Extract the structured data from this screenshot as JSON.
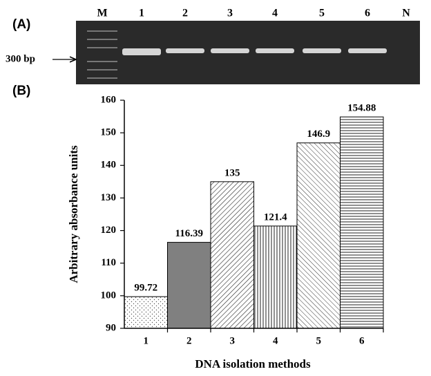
{
  "panel_labels": [
    "(A)",
    "(B)"
  ],
  "gel": {
    "lanes": [
      "M",
      "1",
      "2",
      "3",
      "4",
      "5",
      "6",
      "N"
    ],
    "marker_label": "300 bp"
  },
  "chart_data": {
    "type": "bar",
    "categories": [
      "1",
      "2",
      "3",
      "4",
      "5",
      "6"
    ],
    "values": [
      99.72,
      116.39,
      135,
      121.4,
      146.9,
      154.88
    ],
    "x_label": "DNA isolation methods",
    "y_label": "Arbitrary  absorbance units",
    "ylim": [
      90,
      160
    ],
    "yticks": [
      90,
      100,
      110,
      120,
      130,
      140,
      150,
      160
    ],
    "grid": false
  }
}
